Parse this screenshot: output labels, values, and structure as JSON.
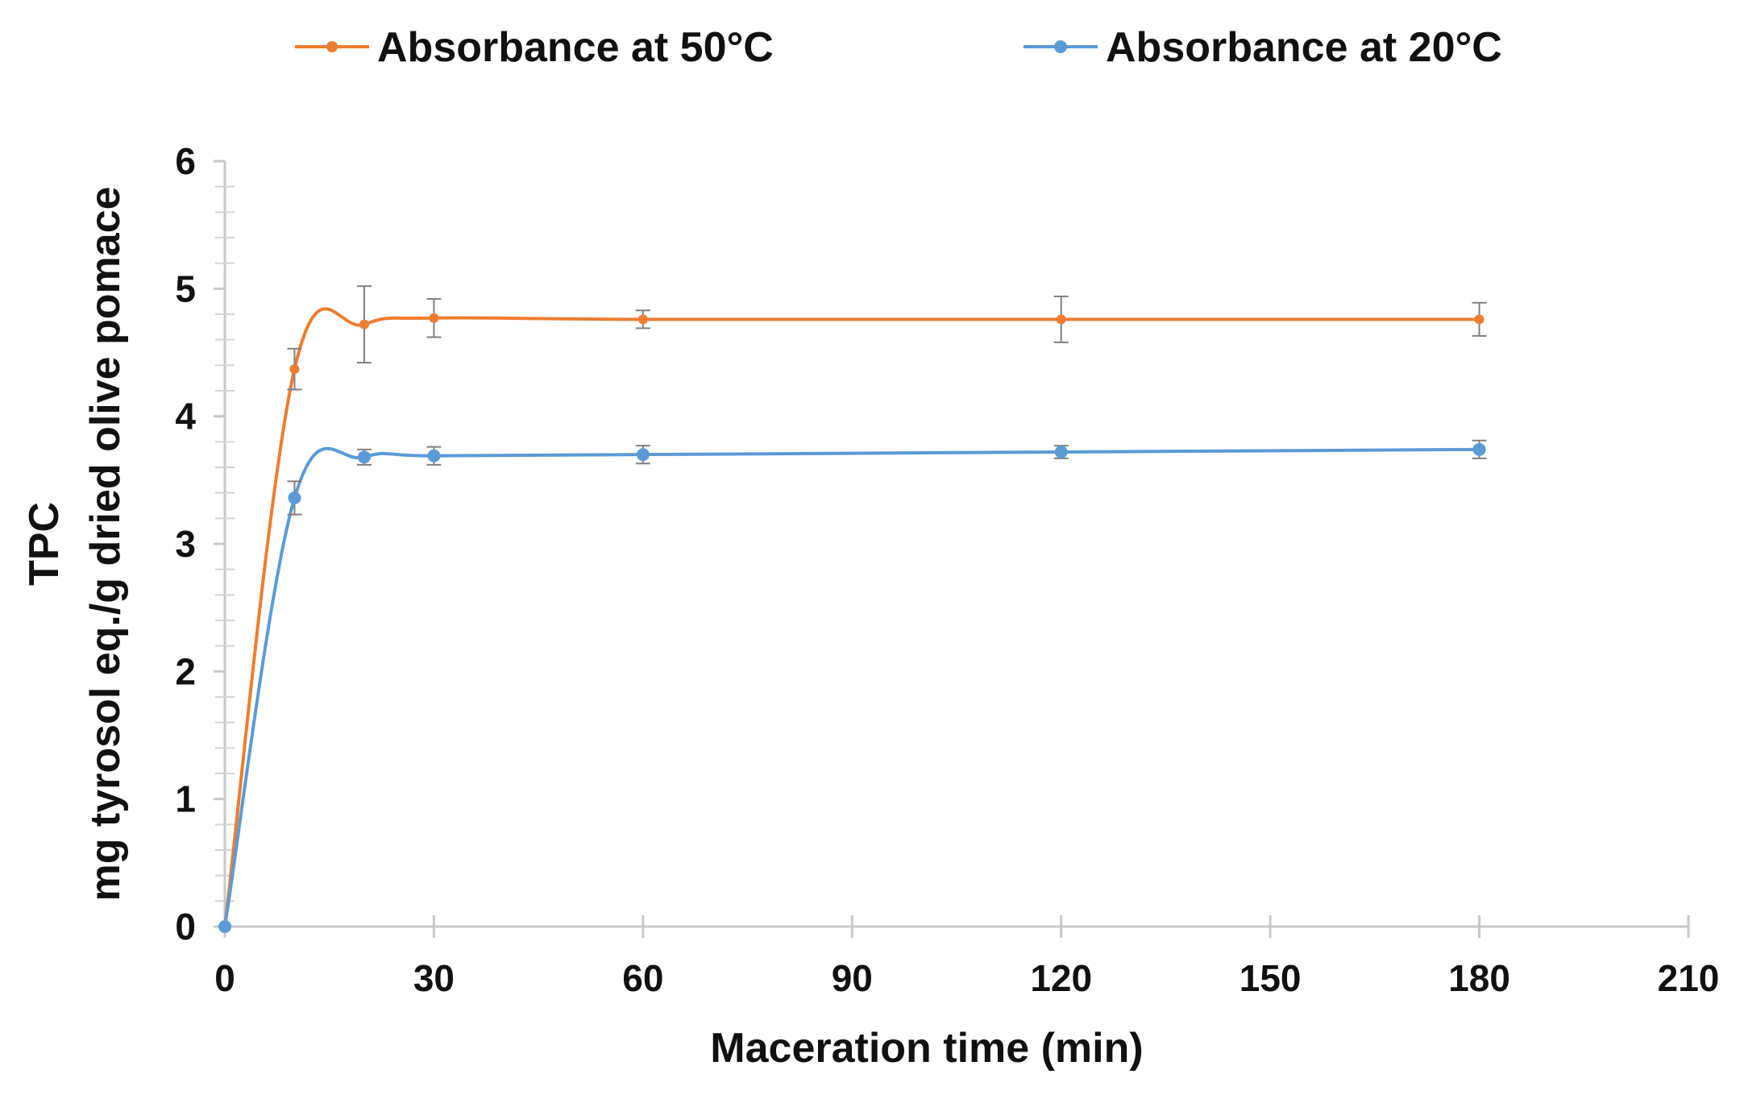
{
  "chart_data": {
    "type": "line",
    "title": "",
    "xlabel": "Maceration time (min)",
    "ylabel_line1": "TPC",
    "ylabel_line2": "mg tyrosol eq./g dried olive pomace",
    "xlim": [
      0,
      210
    ],
    "ylim": [
      0,
      6
    ],
    "xticks": [
      0,
      30,
      60,
      90,
      120,
      150,
      180,
      210
    ],
    "yticks": [
      0,
      1,
      2,
      3,
      4,
      5,
      6
    ],
    "grid": false,
    "legend_position": "top",
    "series": [
      {
        "name": "Absorbance at 50°C",
        "color": "#ED7D31",
        "x": [
          0,
          10,
          20,
          30,
          60,
          120,
          180
        ],
        "y": [
          0,
          4.37,
          4.72,
          4.77,
          4.76,
          4.76,
          4.76
        ],
        "yerr": [
          0,
          0.16,
          0.3,
          0.15,
          0.07,
          0.18,
          0.13
        ]
      },
      {
        "name": "Absorbance at 20°C",
        "color": "#5B9BD5",
        "x": [
          0,
          10,
          20,
          30,
          60,
          120,
          180
        ],
        "y": [
          0,
          3.36,
          3.68,
          3.69,
          3.7,
          3.72,
          3.74
        ],
        "yerr": [
          0,
          0.13,
          0.06,
          0.07,
          0.07,
          0.05,
          0.07
        ]
      }
    ]
  }
}
